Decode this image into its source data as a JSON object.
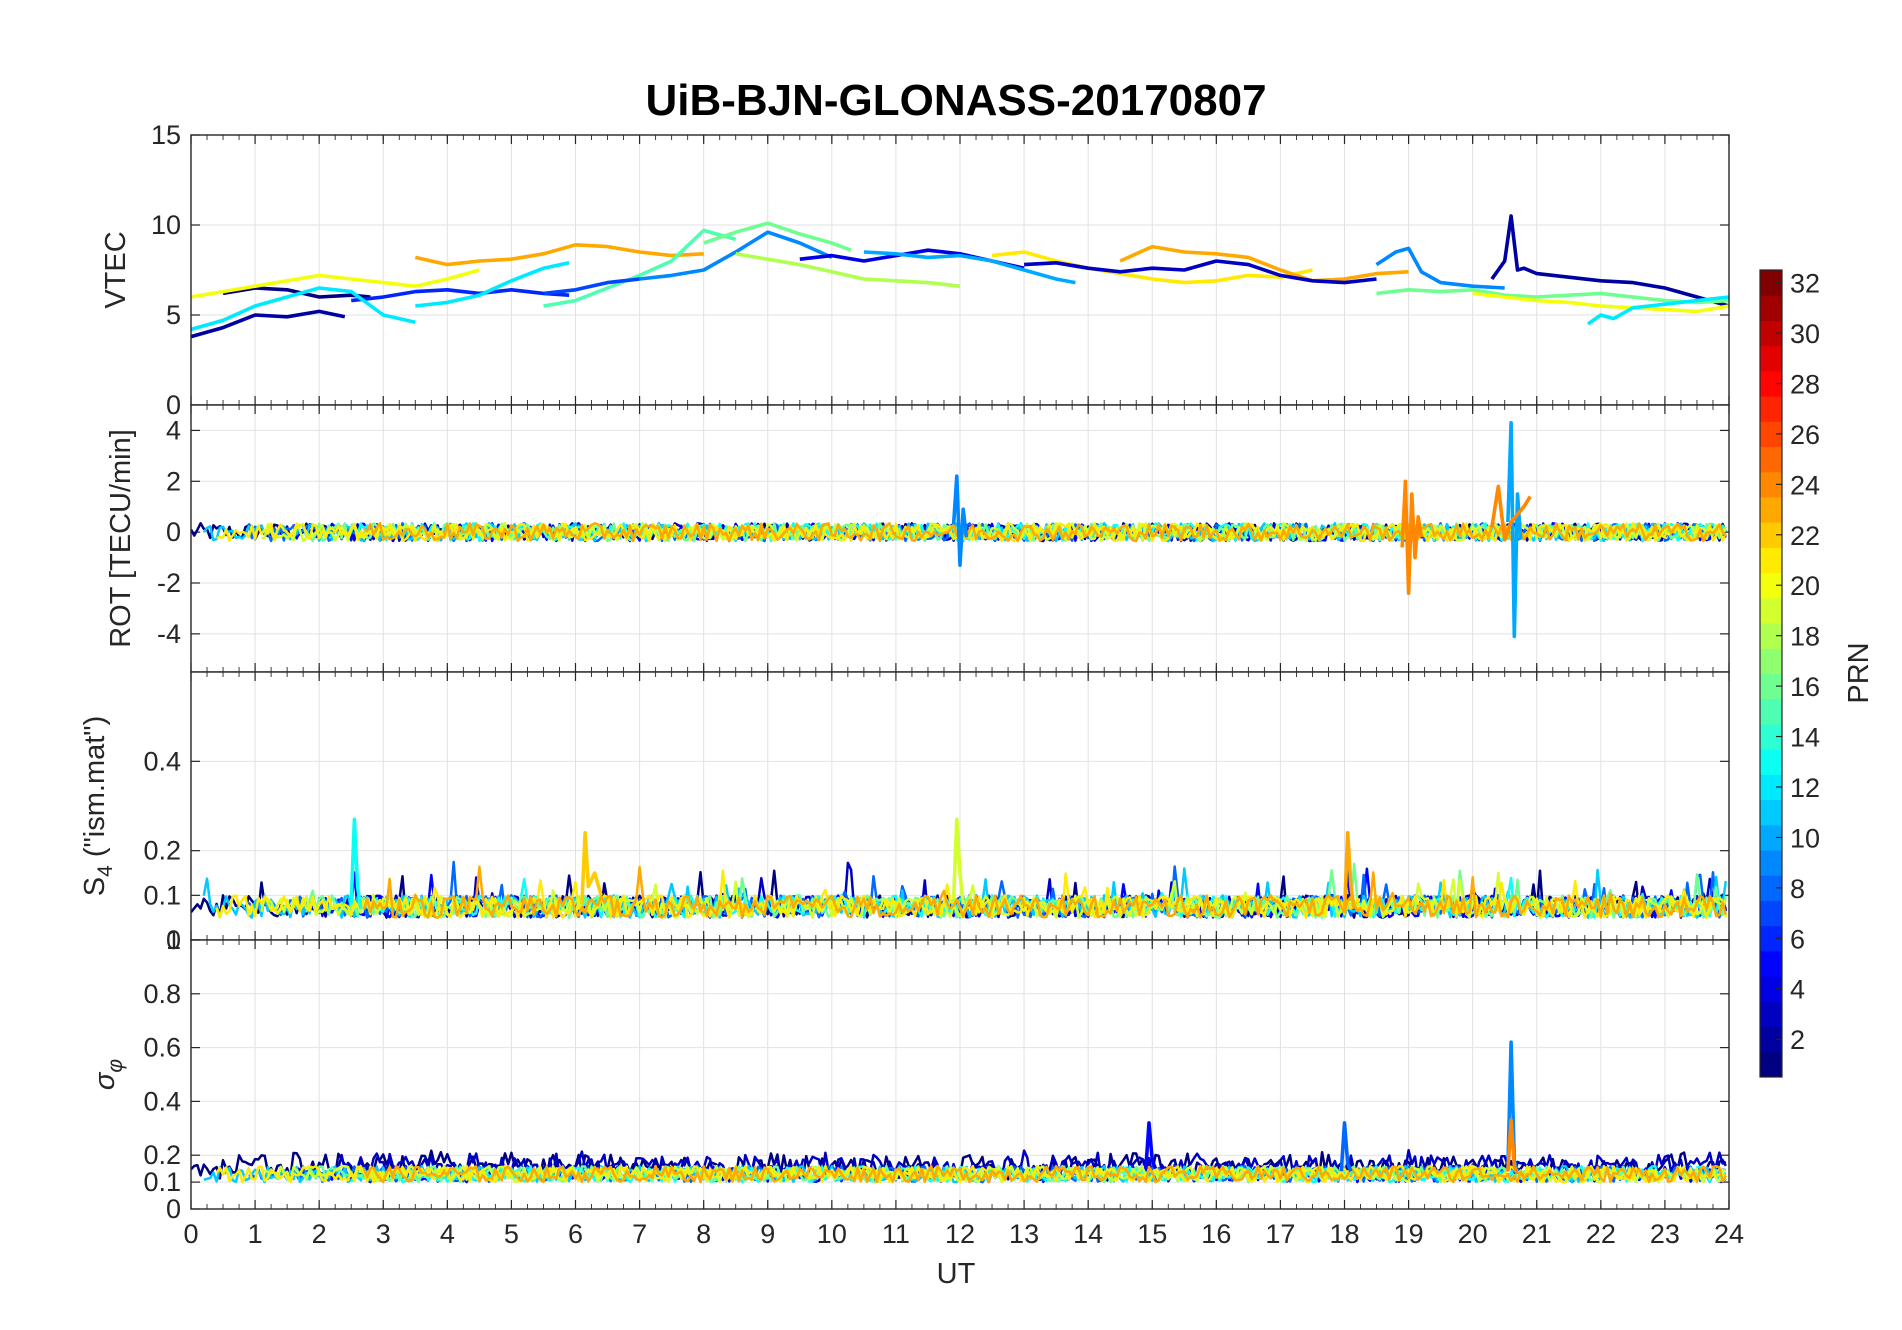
{
  "chart_data": {
    "type": "line",
    "title": "UiB-BJN-GLONASS-20170807",
    "xlabel": "UT",
    "xlim": [
      0,
      24
    ],
    "xticks": [
      "0",
      "1",
      "2",
      "3",
      "4",
      "5",
      "6",
      "7",
      "8",
      "9",
      "10",
      "11",
      "12",
      "13",
      "14",
      "15",
      "16",
      "17",
      "18",
      "19",
      "20",
      "21",
      "22",
      "23",
      "24"
    ],
    "grid": true,
    "colorbar": {
      "label": "PRN",
      "colormap": "jet",
      "range": [
        1,
        32
      ],
      "ticks": [
        "2",
        "4",
        "6",
        "8",
        "10",
        "12",
        "14",
        "16",
        "18",
        "20",
        "22",
        "24",
        "26",
        "28",
        "30",
        "32"
      ]
    },
    "panels": [
      {
        "ylabel": "VTEC",
        "ylim": [
          0,
          15
        ],
        "yticks": [
          "0",
          "5",
          "10",
          "15"
        ],
        "series": [
          {
            "prn": 2,
            "x": [
              0,
              0.5,
              1,
              1.5,
              2.0,
              2.4
            ],
            "y": [
              3.8,
              4.3,
              5.0,
              4.9,
              5.2,
              4.9
            ]
          },
          {
            "prn": 1,
            "x": [
              0.5,
              1,
              1.5,
              2,
              2.5,
              2.8
            ],
            "y": [
              6.2,
              6.5,
              6.4,
              6.0,
              6.1,
              6.0
            ]
          },
          {
            "prn": 6,
            "x": [
              2.5,
              3,
              3.5,
              4,
              4.5,
              5,
              5.5,
              5.9
            ],
            "y": [
              5.8,
              6.0,
              6.3,
              6.4,
              6.2,
              6.4,
              6.2,
              6.1
            ]
          },
          {
            "prn": 12,
            "x": [
              0,
              0.5,
              1,
              1.5,
              2,
              2.5,
              3,
              3.5
            ],
            "y": [
              4.2,
              4.7,
              5.5,
              6.0,
              6.5,
              6.3,
              5.0,
              4.6
            ]
          },
          {
            "prn": 12,
            "x": [
              3.5,
              4,
              4.5,
              5,
              5.5,
              5.9
            ],
            "y": [
              5.5,
              5.7,
              6.1,
              6.9,
              7.6,
              7.9
            ]
          },
          {
            "prn": 20,
            "x": [
              0,
              0.5,
              1,
              1.5,
              2,
              2.5,
              3,
              3.5,
              4,
              4.5
            ],
            "y": [
              6.0,
              6.3,
              6.6,
              6.9,
              7.2,
              7.0,
              6.8,
              6.6,
              7.0,
              7.5
            ]
          },
          {
            "prn": 23,
            "x": [
              3.5,
              4,
              4.5,
              5,
              5.5,
              6,
              6.5,
              7,
              7.5,
              8
            ],
            "y": [
              8.2,
              7.8,
              8.0,
              8.1,
              8.4,
              8.9,
              8.8,
              8.5,
              8.3,
              8.4
            ]
          },
          {
            "prn": 15,
            "x": [
              5.5,
              6,
              6.5,
              7,
              7.5,
              8,
              8.5
            ],
            "y": [
              5.5,
              5.8,
              6.5,
              7.2,
              8.0,
              9.7,
              9.2
            ]
          },
          {
            "prn": 7,
            "x": [
              5.5,
              6,
              6.5,
              7
            ],
            "y": [
              6.2,
              6.4,
              6.8,
              7.0
            ]
          },
          {
            "prn": 9,
            "x": [
              7,
              7.5,
              8,
              8.5,
              9,
              9.5,
              10
            ],
            "y": [
              7.0,
              7.2,
              7.5,
              8.5,
              9.6,
              9.0,
              8.2
            ]
          },
          {
            "prn": 16,
            "x": [
              8,
              8.5,
              9,
              9.5,
              10,
              10.3
            ],
            "y": [
              9.0,
              9.6,
              10.1,
              9.5,
              9.0,
              8.6
            ]
          },
          {
            "prn": 18,
            "x": [
              8.5,
              9,
              9.5,
              10,
              10.5,
              11,
              11.5,
              12
            ],
            "y": [
              8.4,
              8.1,
              7.8,
              7.4,
              7.0,
              6.9,
              6.8,
              6.6
            ]
          },
          {
            "prn": 4,
            "x": [
              9.5,
              10,
              10.5,
              11,
              11.5,
              12,
              12.5,
              13
            ],
            "y": [
              8.1,
              8.3,
              8.0,
              8.3,
              8.6,
              8.4,
              8.0,
              7.6
            ]
          },
          {
            "prn": 10,
            "x": [
              10.5,
              11,
              11.5,
              12,
              12.5,
              13,
              13.5,
              13.8
            ],
            "y": [
              8.5,
              8.4,
              8.2,
              8.3,
              8.0,
              7.5,
              7.0,
              6.8
            ]
          },
          {
            "prn": 21,
            "x": [
              12.5,
              13,
              13.5,
              14,
              14.5,
              15,
              15.5,
              16,
              16.5,
              17,
              17.5
            ],
            "y": [
              8.3,
              8.5,
              8.0,
              7.6,
              7.3,
              7.0,
              6.8,
              6.9,
              7.2,
              7.1,
              7.5
            ]
          },
          {
            "prn": 23,
            "x": [
              14.5,
              15,
              15.5,
              16,
              16.5,
              17,
              17.5,
              18,
              18.5,
              19
            ],
            "y": [
              8.0,
              8.8,
              8.5,
              8.4,
              8.2,
              7.5,
              6.9,
              7.0,
              7.3,
              7.4
            ]
          },
          {
            "prn": 3,
            "x": [
              13,
              13.5,
              14,
              14.5,
              15,
              15.5,
              16,
              16.5,
              17,
              17.5,
              18,
              18.5
            ],
            "y": [
              7.8,
              7.9,
              7.6,
              7.4,
              7.6,
              7.5,
              8.0,
              7.8,
              7.2,
              6.9,
              6.8,
              7.0
            ]
          },
          {
            "prn": 9,
            "x": [
              18.5,
              18.8,
              19,
              19.2,
              19.5,
              20,
              20.5
            ],
            "y": [
              7.8,
              8.5,
              8.7,
              7.4,
              6.8,
              6.6,
              6.5
            ]
          },
          {
            "prn": 2,
            "x": [
              20.3,
              20.5,
              20.6,
              20.7,
              20.8,
              21,
              21.5,
              22,
              22.5,
              23,
              23.5,
              24
            ],
            "y": [
              7.0,
              8.0,
              10.5,
              7.5,
              7.6,
              7.3,
              7.1,
              6.9,
              6.8,
              6.5,
              6.0,
              5.5
            ]
          },
          {
            "prn": 16,
            "x": [
              18.5,
              19,
              19.5,
              20,
              20.5,
              21,
              21.5,
              22,
              22.5,
              23,
              23.5,
              24
            ],
            "y": [
              6.2,
              6.4,
              6.3,
              6.4,
              6.1,
              6.0,
              6.1,
              6.2,
              6.0,
              5.8,
              5.7,
              5.8
            ]
          },
          {
            "prn": 20,
            "x": [
              20,
              20.5,
              21,
              21.5,
              22,
              22.5,
              23,
              23.5,
              24
            ],
            "y": [
              6.2,
              6.0,
              5.8,
              5.7,
              5.5,
              5.4,
              5.3,
              5.2,
              5.5
            ]
          },
          {
            "prn": 12,
            "x": [
              21.8,
              22,
              22.2,
              22.5,
              23,
              23.5,
              24
            ],
            "y": [
              4.5,
              5.0,
              4.8,
              5.4,
              5.6,
              5.8,
              6.0
            ]
          }
        ]
      },
      {
        "ylabel": "ROT [TECU/min]",
        "ylim": [
          -5.5,
          5
        ],
        "yticks": [
          "-4",
          "-2",
          "0",
          "2",
          "4"
        ],
        "series": [
          {
            "prn": 9,
            "x": [
              11.9,
              11.95,
              12,
              12.05,
              12.1
            ],
            "y": [
              0.3,
              2.2,
              -1.3,
              0.9,
              -0.2
            ]
          },
          {
            "prn": 24,
            "x": [
              18.9,
              18.95,
              19,
              19.05,
              19.1,
              19.15,
              19.2
            ],
            "y": [
              -0.6,
              2.0,
              -2.4,
              1.5,
              -1.0,
              0.6,
              -0.2
            ]
          },
          {
            "prn": 10,
            "x": [
              20.55,
              20.6,
              20.65,
              20.7,
              20.75
            ],
            "y": [
              0.4,
              4.3,
              -4.1,
              1.5,
              -0.3
            ]
          },
          {
            "prn": 24,
            "x": [
              20.3,
              20.4,
              20.5,
              20.6,
              20.7,
              20.8,
              20.9
            ],
            "y": [
              0.2,
              1.8,
              -0.3,
              0.4,
              0.7,
              1.0,
              1.4
            ]
          }
        ]
      },
      {
        "ylabel": "S4 (\"ism.mat\")",
        "ylabel_main": "S",
        "ylabel_sub": "4",
        "ylabel_rest": " (\"ism.mat\")",
        "ylim": [
          0,
          0.6
        ],
        "yticks": [
          "0",
          "0.1",
          "0.2",
          "0.4"
        ],
        "series": [
          {
            "prn": 13,
            "x": [
              2.5,
              2.55,
              2.6,
              2.65
            ],
            "y": [
              0.08,
              0.27,
              0.12,
              0.07
            ]
          },
          {
            "prn": 22,
            "x": [
              6.1,
              6.15,
              6.2,
              6.3,
              6.4
            ],
            "y": [
              0.08,
              0.24,
              0.12,
              0.15,
              0.1
            ]
          },
          {
            "prn": 19,
            "x": [
              11.9,
              11.95,
              12,
              12.05
            ],
            "y": [
              0.09,
              0.27,
              0.15,
              0.08
            ]
          },
          {
            "prn": 23,
            "x": [
              18,
              18.05,
              18.1,
              18.15
            ],
            "y": [
              0.06,
              0.24,
              0.12,
              0.07
            ]
          }
        ]
      },
      {
        "ylabel": "σφ",
        "ylabel_main": "σ",
        "ylabel_sub": "φ",
        "ylim": [
          0,
          1
        ],
        "yticks": [
          "0",
          "0.1",
          "0.2",
          "0.4",
          "0.6",
          "0.8",
          "1"
        ],
        "series": [
          {
            "prn": 9,
            "x": [
              20.55,
              20.6,
              20.65,
              20.7
            ],
            "y": [
              0.15,
              0.62,
              0.18,
              0.14
            ]
          },
          {
            "prn": 24,
            "x": [
              20.55,
              20.6,
              20.65,
              20.7
            ],
            "y": [
              0.14,
              0.33,
              0.16,
              0.13
            ]
          },
          {
            "prn": 5,
            "x": [
              14.9,
              14.95,
              15,
              15.05
            ],
            "y": [
              0.15,
              0.32,
              0.18,
              0.15
            ]
          },
          {
            "prn": 8,
            "x": [
              17.95,
              18,
              18.05,
              18.1
            ],
            "y": [
              0.14,
              0.32,
              0.17,
              0.14
            ]
          }
        ]
      }
    ]
  }
}
